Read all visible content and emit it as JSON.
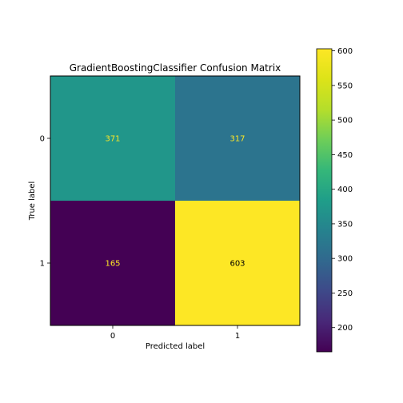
{
  "chart_data": {
    "type": "heatmap",
    "title": "GradientBoostingClassifier Confusion Matrix",
    "xlabel": "Predicted label",
    "ylabel": "True label",
    "x_categories": [
      "0",
      "1"
    ],
    "y_categories": [
      "0",
      "1"
    ],
    "values": [
      [
        371,
        317
      ],
      [
        165,
        603
      ]
    ],
    "value_labels": [
      [
        "371",
        "317"
      ],
      [
        "165",
        "603"
      ]
    ],
    "colormap": "viridis",
    "text_colors": {
      "low": "#fde725",
      "high": "#000000"
    },
    "colorbar": {
      "range": [
        165,
        603
      ],
      "ticks": [
        200,
        250,
        300,
        350,
        400,
        450,
        500,
        550,
        600
      ],
      "tick_labels": [
        "200",
        "250",
        "300",
        "350",
        "400",
        "450",
        "500",
        "550",
        "600"
      ]
    }
  }
}
